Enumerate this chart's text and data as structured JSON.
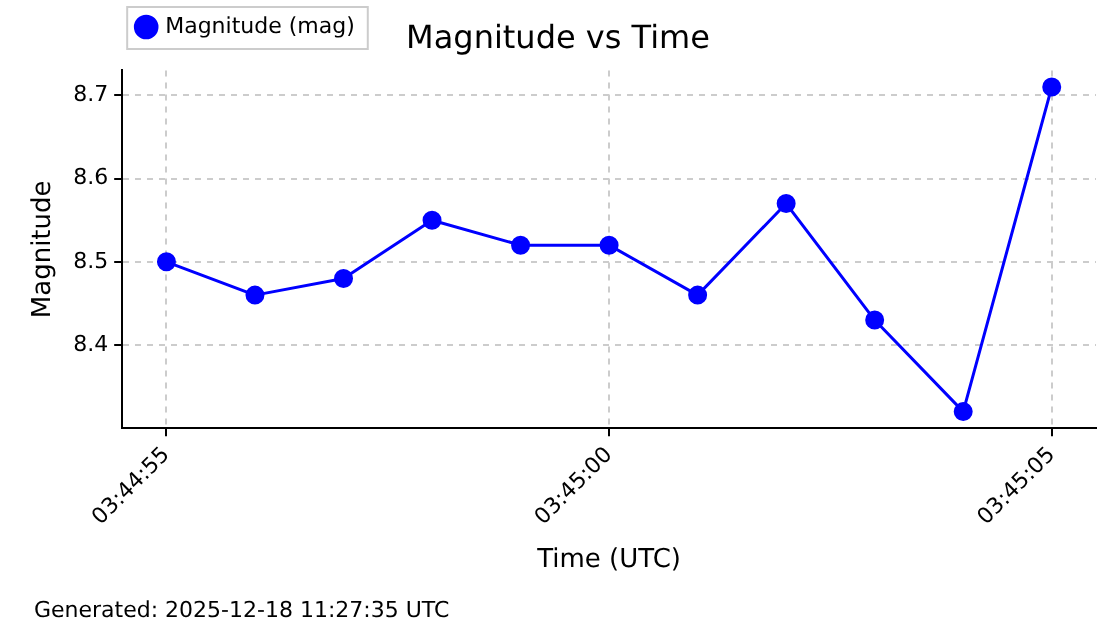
{
  "chart_data": {
    "type": "line",
    "title": "Magnitude vs Time",
    "xlabel": "Time (UTC)",
    "ylabel": "Magnitude",
    "categories": [
      "03:44:55",
      null,
      null,
      null,
      null,
      "03:45:00",
      null,
      null,
      null,
      null,
      "03:45:05"
    ],
    "series": [
      {
        "name": "Magnitude (mag)",
        "color": "#0000ff",
        "values": [
          8.5,
          8.46,
          8.48,
          8.55,
          8.52,
          8.52,
          8.46,
          8.57,
          8.43,
          8.32,
          8.71
        ]
      }
    ],
    "ylim": [
      8.3,
      8.73
    ],
    "yticks": [
      8.4,
      8.5,
      8.6,
      8.7
    ],
    "grid": true,
    "legend": "top left",
    "marker": "circle",
    "line_style": "solid",
    "annotations": [
      "Generated: 2025-12-18 11:27:35 UTC"
    ]
  }
}
